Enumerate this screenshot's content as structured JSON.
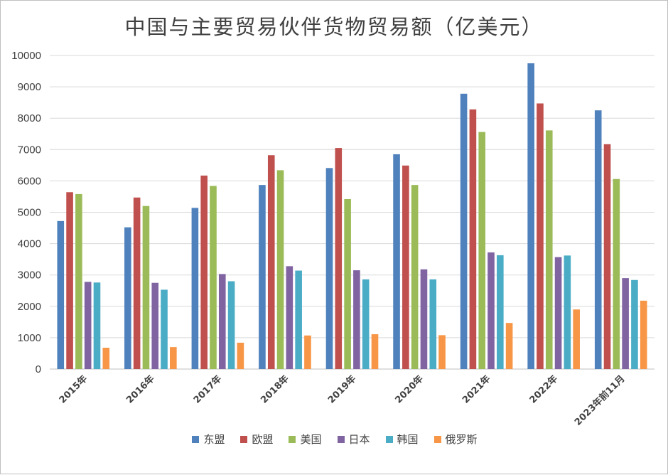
{
  "chart_data": {
    "type": "bar",
    "title": "中国与主要贸易伙伴货物贸易额（亿美元）",
    "categories": [
      "2015年",
      "2016年",
      "2017年",
      "2018年",
      "2019年",
      "2020年",
      "2021年",
      "2022年",
      "2023年前11月"
    ],
    "series": [
      {
        "name": "东盟",
        "color": "#4f81bd",
        "values": [
          4720,
          4520,
          5140,
          5870,
          6410,
          6850,
          8780,
          9750,
          8250
        ]
      },
      {
        "name": "欧盟",
        "color": "#c0504d",
        "values": [
          5640,
          5470,
          6170,
          6820,
          7050,
          6490,
          8280,
          8470,
          7170
        ]
      },
      {
        "name": "美国",
        "color": "#9bbb59",
        "values": [
          5580,
          5200,
          5840,
          6340,
          5420,
          5870,
          7560,
          7610,
          6060
        ]
      },
      {
        "name": "日本",
        "color": "#8064a2",
        "values": [
          2780,
          2750,
          3030,
          3280,
          3150,
          3180,
          3720,
          3570,
          2900
        ]
      },
      {
        "name": "韩国",
        "color": "#4bacc6",
        "values": [
          2760,
          2530,
          2800,
          3140,
          2860,
          2860,
          3630,
          3620,
          2840
        ]
      },
      {
        "name": "俄罗斯",
        "color": "#f79646",
        "values": [
          680,
          700,
          840,
          1070,
          1110,
          1080,
          1470,
          1900,
          2180
        ]
      }
    ],
    "ylim": [
      0,
      10000
    ],
    "yticks": [
      0,
      1000,
      2000,
      3000,
      4000,
      5000,
      6000,
      7000,
      8000,
      9000,
      10000
    ],
    "grid": true,
    "legend_position": "bottom"
  }
}
